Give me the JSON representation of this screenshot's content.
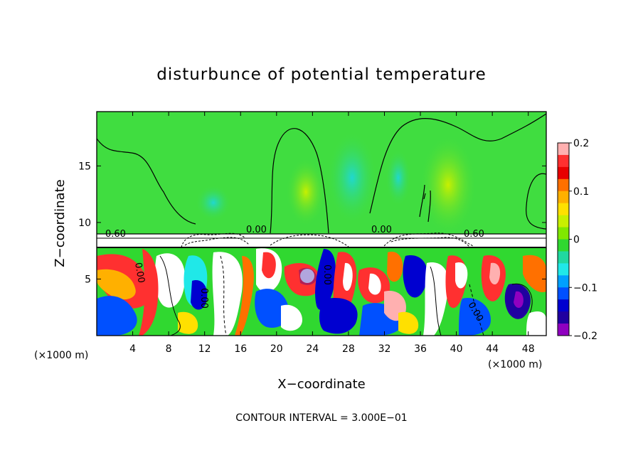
{
  "chart_data": {
    "type": "heatmap",
    "title": "disturbunce of potential temperature",
    "xlabel": "X−coordinate",
    "ylabel": "Z−coordinate",
    "x_unit_label_left": "(×1000 m)",
    "x_unit_label_right": "(×1000 m)",
    "footer": "CONTOUR INTERVAL = 3.000E−01",
    "xlim": [
      0,
      50
    ],
    "ylim": [
      0,
      19.8
    ],
    "x_ticks": [
      4,
      8,
      12,
      16,
      20,
      24,
      28,
      32,
      36,
      40,
      44,
      48
    ],
    "y_ticks": [
      5,
      10,
      15
    ],
    "colorbar": {
      "range": [
        -0.2,
        0.2
      ],
      "tick_values": [
        0.2,
        0.1,
        0,
        -0.1,
        -0.2
      ],
      "tick_labels": [
        "0.2",
        "0.1",
        "0",
        "−0.1",
        "−0.2"
      ],
      "colors": [
        "#ffb0b0",
        "#ff3030",
        "#e80000",
        "#ff7000",
        "#ffb000",
        "#ffe000",
        "#c8f000",
        "#80e800",
        "#30d830",
        "#20d8a0",
        "#20e8e8",
        "#00a0ff",
        "#0050ff",
        "#0000d0",
        "#2000a0",
        "#9000c0"
      ]
    },
    "contour_labels": [
      "0.60",
      "0.00",
      "0.00",
      "0.60",
      "0.00",
      "0.00",
      "0.00",
      "0.00"
    ],
    "grid": false,
    "background_upper": "#40dd40",
    "cloud_layer_color": "#ffffff"
  }
}
